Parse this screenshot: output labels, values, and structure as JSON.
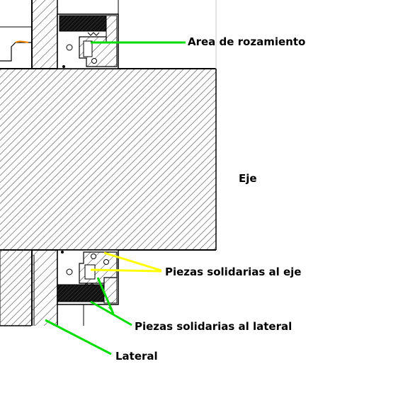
{
  "labels": {
    "friction_area": "Area de rozamiento",
    "shaft": "Eje",
    "shaft_parts": "Piezas solidarias al eje",
    "side_parts": "Piezas solidarias al lateral",
    "side": "Lateral"
  },
  "colors": {
    "outline": "#000000",
    "hatch": "#555555",
    "seal_fill": "#1a1a1a",
    "leader_green": "#00dd00",
    "leader_yellow": "#ffff00",
    "accent_orange": "#ff8c00",
    "background": "#ffffff"
  }
}
